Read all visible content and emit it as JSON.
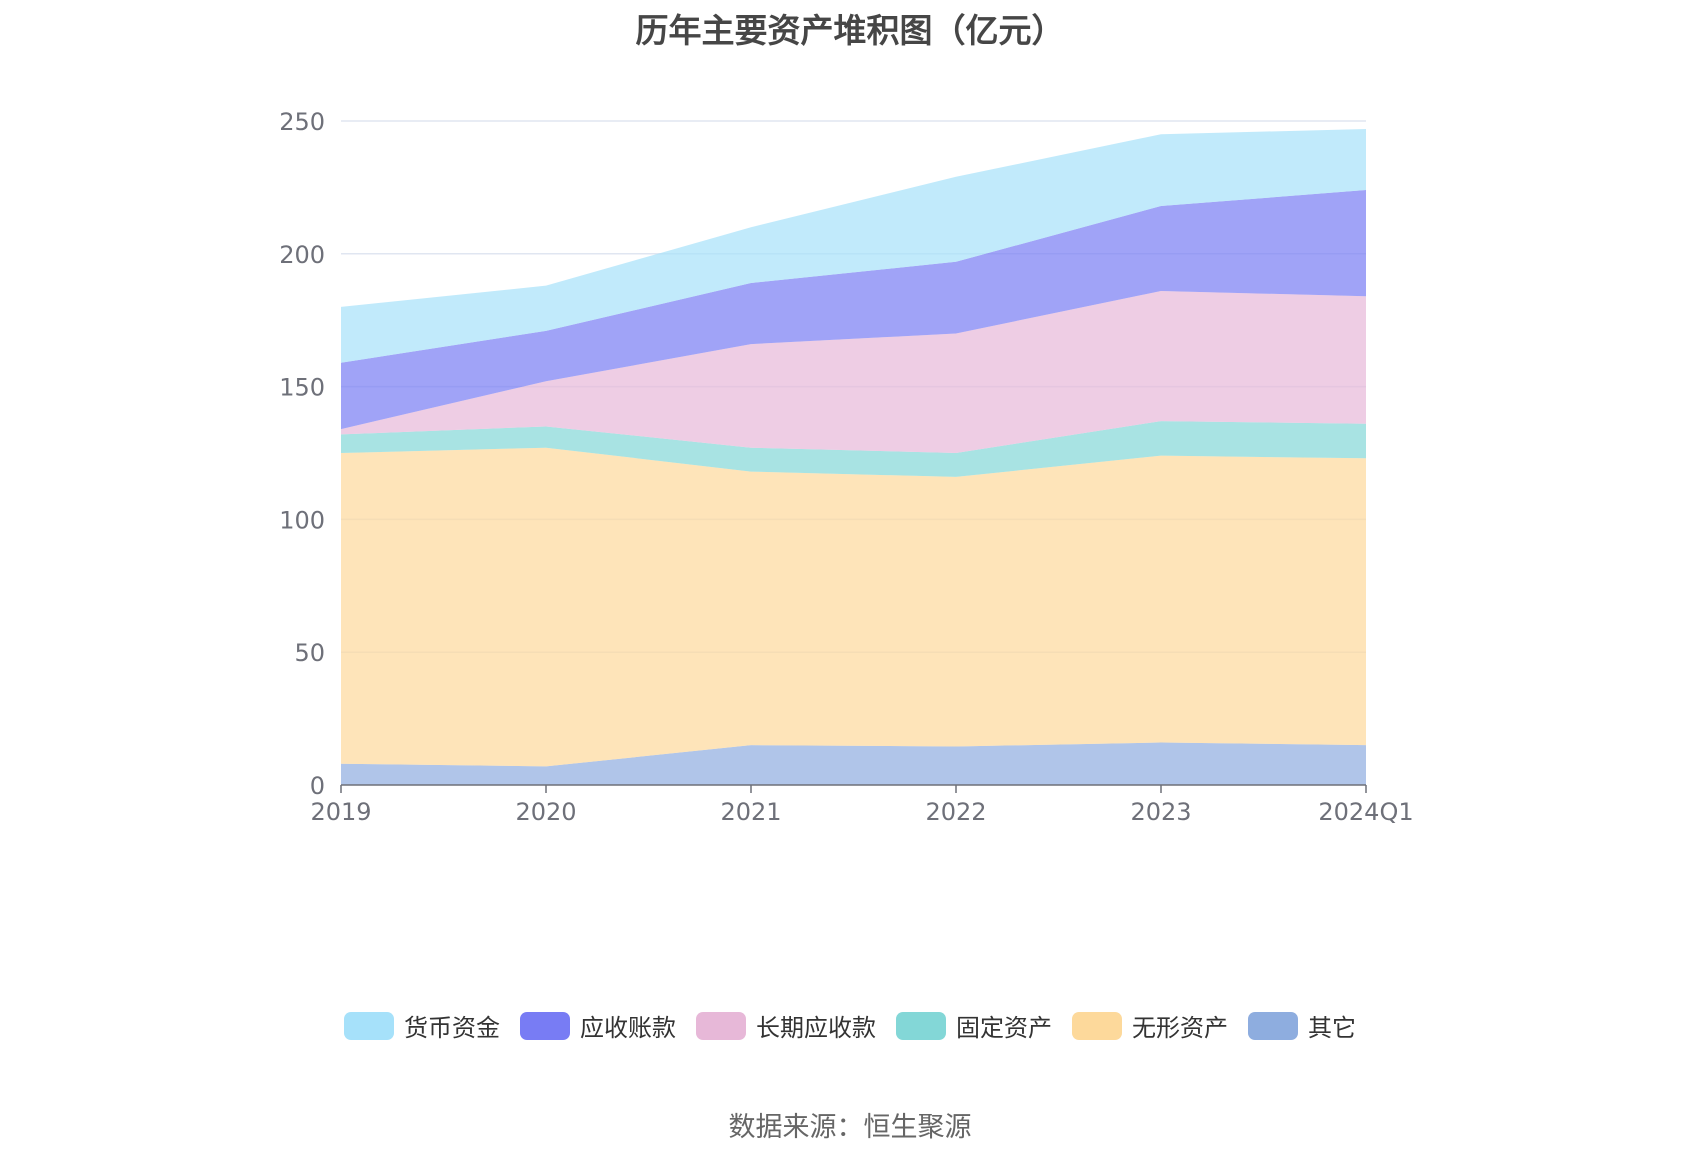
{
  "chart_data": {
    "type": "area",
    "stacked": true,
    "title": "历年主要资产堆积图（亿元）",
    "categories": [
      "2019",
      "2020",
      "2021",
      "2022",
      "2023",
      "2024Q1"
    ],
    "ylim": [
      0,
      250
    ],
    "yticks": [
      0,
      50,
      100,
      150,
      200,
      250
    ],
    "grid": true,
    "legend_position": "bottom",
    "series": [
      {
        "name": "其它",
        "color": "#8eaddf",
        "values": [
          8,
          7,
          15,
          14.5,
          16,
          15
        ]
      },
      {
        "name": "无形资产",
        "color": "#fdd99b",
        "values": [
          117,
          120,
          103,
          101.5,
          108,
          108
        ]
      },
      {
        "name": "固定资产",
        "color": "#83d7d7",
        "values": [
          7,
          8,
          9,
          9,
          13,
          13
        ]
      },
      {
        "name": "长期应收款",
        "color": "#e7b8d8",
        "values": [
          2,
          17,
          39,
          45,
          49,
          48
        ]
      },
      {
        "name": "应收账款",
        "color": "#787cf4",
        "values": [
          25,
          19,
          23,
          27,
          32,
          40
        ]
      },
      {
        "name": "货币资金",
        "color": "#a6e1fa",
        "values": [
          21,
          17,
          21,
          32,
          27,
          23
        ]
      }
    ]
  },
  "source": "数据来源：恒生聚源"
}
